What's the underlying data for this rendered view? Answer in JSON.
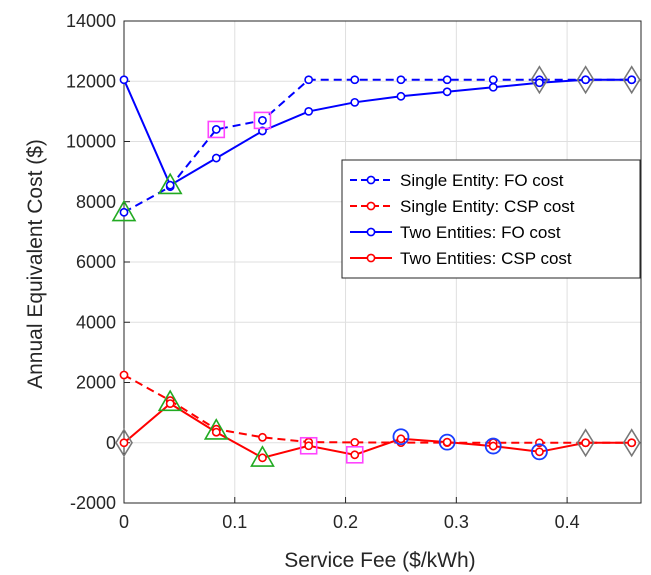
{
  "chart_data": {
    "type": "line",
    "title": "",
    "xlabel": "Service Fee ($/kWh)",
    "ylabel": "Annual Equivalent Cost ($)",
    "xlim": [
      0,
      0.4667
    ],
    "ylim": [
      -2000,
      14000
    ],
    "xticks": [
      0,
      0.1,
      0.2,
      0.3,
      0.4
    ],
    "xtick_labels": [
      "0",
      "0.1",
      "0.2",
      "0.3",
      "0.4"
    ],
    "yticks": [
      -2000,
      0,
      2000,
      4000,
      6000,
      8000,
      10000,
      12000,
      14000
    ],
    "ytick_labels": [
      "-2000",
      "0",
      "2000",
      "4000",
      "6000",
      "8000",
      "10000",
      "12000",
      "14000"
    ],
    "grid": true,
    "legend_position": "right-middle",
    "x": [
      0,
      0.0417,
      0.0833,
      0.125,
      0.1667,
      0.2083,
      0.25,
      0.2917,
      0.3333,
      0.375,
      0.4167,
      0.4583
    ],
    "series": [
      {
        "name": "Single Entity: FO cost",
        "color": "#0000ff",
        "style": "dashed",
        "values": [
          7650,
          8500,
          10400,
          10700,
          12050,
          12050,
          12050,
          12050,
          12050,
          12050,
          12050,
          12050
        ]
      },
      {
        "name": "Single Entity: CSP cost",
        "color": "#ff0000",
        "style": "dashed",
        "values": [
          2250,
          1400,
          450,
          180,
          20,
          10,
          5,
          3,
          2,
          1,
          0,
          0
        ]
      },
      {
        "name": "Two Entities: FO cost",
        "color": "#0000ff",
        "style": "solid",
        "values": [
          12050,
          8550,
          9450,
          10350,
          11000,
          11300,
          11500,
          11650,
          11800,
          11950,
          12050,
          12050
        ]
      },
      {
        "name": "Two Entities: CSP cost",
        "color": "#ff0000",
        "style": "solid",
        "values": [
          0,
          1300,
          350,
          -500,
          -100,
          -400,
          130,
          20,
          -110,
          -300,
          0,
          0
        ]
      }
    ],
    "markers": [
      {
        "shape": "triangle",
        "color": "#22aa22",
        "points": [
          [
            0,
            7650
          ],
          [
            0.0417,
            8550
          ],
          [
            0.0417,
            1350
          ],
          [
            0.0833,
            400
          ],
          [
            0.125,
            -500
          ]
        ]
      },
      {
        "shape": "square",
        "color": "#ff44ff",
        "points": [
          [
            0.0833,
            10400
          ],
          [
            0.125,
            10700
          ],
          [
            0.1667,
            -100
          ],
          [
            0.2083,
            -400
          ]
        ]
      },
      {
        "shape": "circle",
        "color": "#1a3fff",
        "points": [
          [
            0.25,
            200
          ],
          [
            0.2917,
            20
          ],
          [
            0.3333,
            -110
          ],
          [
            0.375,
            -300
          ]
        ]
      },
      {
        "shape": "diamond",
        "color": "#777777",
        "points": [
          [
            0,
            0
          ],
          [
            0.375,
            12050
          ],
          [
            0.4167,
            12050
          ],
          [
            0.4583,
            12050
          ],
          [
            0.4167,
            0
          ],
          [
            0.4583,
            0
          ]
        ]
      }
    ]
  }
}
